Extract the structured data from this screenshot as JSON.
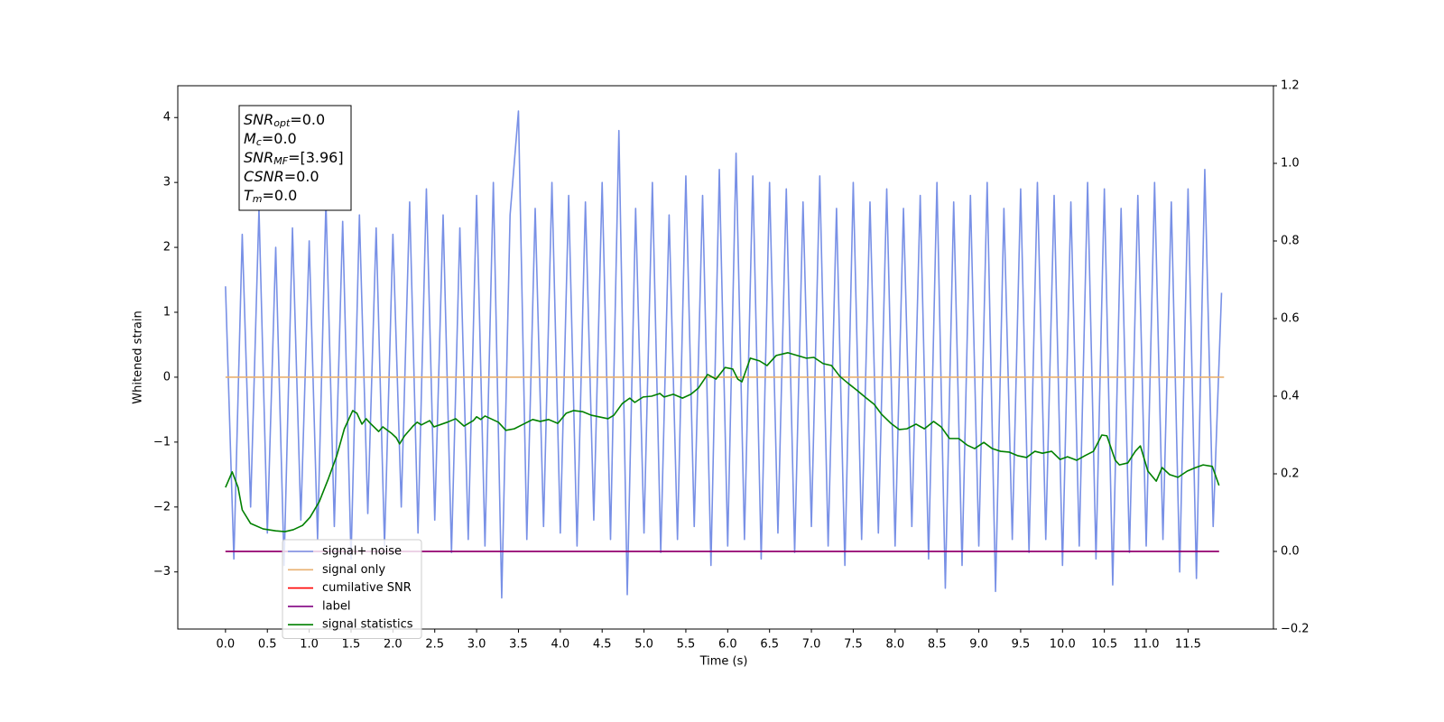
{
  "chart_data": {
    "type": "line",
    "xlabel": "Time (s)",
    "ylabel": "Whitened strain",
    "xlim": [
      -0.57,
      12.52
    ],
    "xticks": [
      {
        "value": 0,
        "label": "0.0"
      },
      0.5,
      {
        "value": 1,
        "label": "1.0"
      },
      1.5,
      {
        "value": 2,
        "label": "2.0"
      },
      2.5,
      {
        "value": 3,
        "label": "3.0"
      },
      3.5,
      {
        "value": 4,
        "label": "4.0"
      },
      4.5,
      {
        "value": 5,
        "label": "5.0"
      },
      5.5,
      {
        "value": 6,
        "label": "6.0"
      },
      6.5,
      {
        "value": 7,
        "label": "7.0"
      },
      7.5,
      {
        "value": 8,
        "label": "8.0"
      },
      8.5,
      {
        "value": 9,
        "label": "9.0"
      },
      9.5,
      {
        "value": 10,
        "label": "10.0"
      },
      10.5,
      {
        "value": 11,
        "label": "11.0"
      },
      11.5
    ],
    "ylim": [
      -3.88,
      4.49
    ],
    "yticks": [
      {
        "value": -3,
        "label": "−3"
      },
      {
        "value": -2,
        "label": "−2"
      },
      {
        "value": -1,
        "label": "−1"
      },
      0,
      1,
      2,
      3,
      4
    ],
    "y2lim": [
      -0.2,
      1.2
    ],
    "y2ticks": [
      {
        "value": -0.2,
        "label": "−0.2"
      },
      {
        "value": 0,
        "label": "0.0"
      },
      0.2,
      0.4,
      0.6,
      0.8,
      {
        "value": 1,
        "label": "1.0"
      },
      1.2
    ],
    "legend": "lower left",
    "textbox": [
      {
        "symbol": "SNR",
        "subscript": "opt",
        "value": "=0.0"
      },
      {
        "symbol": "M",
        "subscript": "c",
        "value": "=0.0"
      },
      {
        "symbol": "SNR",
        "subscript": "MF",
        "value": "=[3.96]"
      },
      {
        "symbol": "CSNR",
        "value": "=0.0"
      },
      {
        "symbol": "T",
        "subscript": "m",
        "value": "=0.0"
      }
    ],
    "series": [
      {
        "name": "signal+ noise",
        "color": "#7890e6",
        "x": [
          0,
          0.1,
          0.2,
          0.3,
          0.4,
          0.5,
          0.6,
          0.7,
          0.8,
          0.9,
          1,
          1.1,
          1.2,
          1.3,
          1.4,
          1.5,
          1.6,
          1.7,
          1.8,
          1.9,
          2,
          2.1,
          2.2,
          2.3,
          2.4,
          2.5,
          2.6,
          2.7,
          2.8,
          2.9,
          3,
          3.1,
          3.2,
          3.3,
          3.4,
          3.5,
          3.6,
          3.7,
          3.8,
          3.9,
          4,
          4.1,
          4.2,
          4.3,
          4.4,
          4.5,
          4.6,
          4.7,
          4.8,
          4.9,
          5,
          5.1,
          5.2,
          5.3,
          5.4,
          5.5,
          5.6,
          5.7,
          5.8,
          5.9,
          6,
          6.1,
          6.2,
          6.3,
          6.4,
          6.5,
          6.6,
          6.7,
          6.8,
          6.9,
          7,
          7.1,
          7.2,
          7.3,
          7.4,
          7.5,
          7.6,
          7.7,
          7.8,
          7.9,
          8,
          8.1,
          8.2,
          8.3,
          8.4,
          8.5,
          8.6,
          8.7,
          8.8,
          8.9,
          9,
          9.1,
          9.2,
          9.3,
          9.4,
          9.5,
          9.6,
          9.7,
          9.8,
          9.9,
          10,
          10.1,
          10.2,
          10.3,
          10.4,
          10.5,
          10.6,
          10.7,
          10.8,
          10.9,
          11,
          11.1,
          11.2,
          11.3,
          11.4,
          11.5,
          11.6,
          11.7,
          11.8,
          11.9
        ],
        "values": [
          1.4,
          -2.8,
          2.2,
          -2.0,
          2.6,
          -2.4,
          2.0,
          -2.9,
          2.3,
          -2.2,
          2.1,
          -2.5,
          2.7,
          -2.3,
          2.4,
          -2.8,
          2.5,
          -2.1,
          2.3,
          -2.6,
          2.2,
          -2.0,
          2.7,
          -2.4,
          2.9,
          -2.2,
          2.5,
          -2.7,
          2.3,
          -2.5,
          2.8,
          -2.6,
          3.0,
          -3.4,
          2.5,
          4.1,
          -2.5,
          2.6,
          -2.3,
          3.0,
          -2.4,
          2.8,
          -2.6,
          2.7,
          -2.2,
          3.0,
          -2.5,
          3.8,
          -3.35,
          2.6,
          -2.4,
          3.0,
          -2.7,
          2.5,
          -2.5,
          3.1,
          -2.3,
          2.8,
          -2.9,
          3.2,
          -2.6,
          3.45,
          -2.5,
          3.1,
          -2.8,
          3.0,
          -2.4,
          2.9,
          -2.7,
          2.7,
          -2.3,
          3.1,
          -2.6,
          2.6,
          -2.9,
          3.0,
          -2.5,
          2.7,
          -2.4,
          2.9,
          -2.6,
          2.6,
          -2.3,
          2.8,
          -2.8,
          3.0,
          -3.25,
          2.7,
          -2.9,
          2.8,
          -2.6,
          3.0,
          -3.3,
          2.6,
          -2.5,
          2.9,
          -2.7,
          3.0,
          -2.5,
          2.8,
          -2.9,
          2.7,
          -2.6,
          3.0,
          -2.8,
          2.9,
          -3.2,
          2.6,
          -2.7,
          2.8,
          -2.6,
          3.0,
          -2.5,
          2.7,
          -3.0,
          2.9,
          -3.1,
          3.2,
          -2.3,
          1.3
        ]
      },
      {
        "name": "signal only",
        "color": "#e8b070",
        "x": [
          0,
          11.93
        ],
        "values": [
          0,
          0
        ]
      },
      {
        "name": "cumilative SNR",
        "color": "#ff0000",
        "axis": "y2",
        "x": [
          0,
          11.87
        ],
        "values": [
          0,
          0
        ]
      },
      {
        "name": "label",
        "color": "#800080",
        "axis": "y2",
        "x": [
          0,
          11.87
        ],
        "values": [
          0,
          0
        ]
      },
      {
        "name": "signal statistics",
        "color": "#008000",
        "axis": "y2",
        "x": [
          0,
          0.08,
          0.15,
          0.2,
          0.3,
          0.45,
          0.6,
          0.71,
          0.81,
          0.92,
          1.01,
          1.12,
          1.23,
          1.33,
          1.42,
          1.52,
          1.57,
          1.63,
          1.68,
          1.73,
          1.83,
          1.88,
          1.98,
          2.04,
          2.08,
          2.14,
          2.24,
          2.29,
          2.34,
          2.44,
          2.49,
          2.65,
          2.75,
          2.85,
          2.96,
          3.0,
          3.05,
          3.1,
          3.26,
          3.35,
          3.45,
          3.56,
          3.67,
          3.76,
          3.86,
          3.97,
          4.07,
          4.16,
          4.27,
          4.37,
          4.57,
          4.64,
          4.74,
          4.83,
          4.89,
          4.99,
          5.09,
          5.19,
          5.24,
          5.35,
          5.46,
          5.56,
          5.65,
          5.76,
          5.86,
          5.97,
          6.06,
          6.12,
          6.17,
          6.27,
          6.38,
          6.47,
          6.58,
          6.72,
          6.83,
          6.94,
          7.03,
          7.14,
          7.24,
          7.34,
          7.44,
          7.54,
          7.64,
          7.75,
          7.84,
          7.95,
          8.05,
          8.14,
          8.25,
          8.35,
          8.46,
          8.55,
          8.65,
          8.76,
          8.86,
          8.95,
          9.06,
          9.16,
          9.26,
          9.36,
          9.46,
          9.57,
          9.67,
          9.76,
          9.87,
          9.97,
          10.06,
          10.17,
          10.27,
          10.37,
          10.47,
          10.53,
          10.63,
          10.68,
          10.78,
          10.87,
          10.93,
          11.02,
          11.12,
          11.19,
          11.28,
          11.38,
          11.49,
          11.59,
          11.68,
          11.79,
          11.87
        ],
        "values": [
          0.165,
          0.205,
          0.165,
          0.107,
          0.072,
          0.058,
          0.053,
          0.051,
          0.056,
          0.067,
          0.088,
          0.128,
          0.188,
          0.247,
          0.316,
          0.363,
          0.356,
          0.328,
          0.342,
          0.33,
          0.309,
          0.321,
          0.305,
          0.293,
          0.277,
          0.298,
          0.323,
          0.333,
          0.326,
          0.337,
          0.321,
          0.333,
          0.342,
          0.323,
          0.337,
          0.347,
          0.34,
          0.349,
          0.333,
          0.312,
          0.316,
          0.328,
          0.34,
          0.335,
          0.34,
          0.33,
          0.356,
          0.363,
          0.36,
          0.351,
          0.342,
          0.351,
          0.381,
          0.395,
          0.384,
          0.398,
          0.4,
          0.407,
          0.398,
          0.405,
          0.395,
          0.405,
          0.421,
          0.456,
          0.444,
          0.474,
          0.47,
          0.444,
          0.437,
          0.498,
          0.491,
          0.479,
          0.505,
          0.512,
          0.505,
          0.498,
          0.5,
          0.484,
          0.479,
          0.451,
          0.433,
          0.416,
          0.398,
          0.379,
          0.353,
          0.33,
          0.314,
          0.316,
          0.328,
          0.316,
          0.335,
          0.321,
          0.291,
          0.291,
          0.274,
          0.265,
          0.281,
          0.265,
          0.258,
          0.256,
          0.247,
          0.242,
          0.258,
          0.253,
          0.258,
          0.237,
          0.244,
          0.235,
          0.247,
          0.258,
          0.3,
          0.298,
          0.235,
          0.223,
          0.228,
          0.258,
          0.272,
          0.207,
          0.181,
          0.216,
          0.198,
          0.191,
          0.207,
          0.216,
          0.223,
          0.219,
          0.17
        ]
      }
    ]
  }
}
